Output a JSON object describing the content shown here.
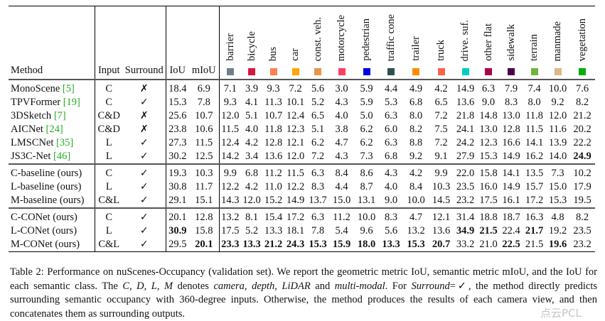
{
  "table": {
    "headers": {
      "method": "Method",
      "input": "Input",
      "surround": "Surround",
      "iou": "IoU",
      "miou": "mIoU"
    },
    "classes": [
      {
        "name": "barrier",
        "color": "#708090"
      },
      {
        "name": "bicycle",
        "color": "#DC143C"
      },
      {
        "name": "bus",
        "color": "#FF7F50"
      },
      {
        "name": "car",
        "color": "#FFA500"
      },
      {
        "name": "const. veh.",
        "color": "#E9964A"
      },
      {
        "name": "motorcycle",
        "color": "#FF3D63"
      },
      {
        "name": "pedestrian",
        "color": "#0000E6"
      },
      {
        "name": "traffic cone",
        "color": "#2F4F4F"
      },
      {
        "name": "trailer",
        "color": "#FF8C00"
      },
      {
        "name": "truck",
        "color": "#FF6347"
      },
      {
        "name": "drive. suf.",
        "color": "#00CFBF"
      },
      {
        "name": "other flat",
        "color": "#AF004B"
      },
      {
        "name": "sidewalk",
        "color": "#4B004B"
      },
      {
        "name": "terrain",
        "color": "#70B43C"
      },
      {
        "name": "manmade",
        "color": "#DEB887"
      },
      {
        "name": "vegetation",
        "color": "#00AF00"
      }
    ],
    "groups": [
      [
        {
          "method": "MonoScene",
          "cite": "[5]",
          "input": "C",
          "surround": "✗",
          "values": [
            "18.4",
            "6.9",
            "7.1",
            "3.9",
            "9.3",
            "7.2",
            "5.6",
            "3.0",
            "5.9",
            "4.4",
            "4.9",
            "4.2",
            "14.9",
            "6.3",
            "7.9",
            "7.4",
            "10.0",
            "7.6"
          ],
          "bold": []
        },
        {
          "method": "TPVFormer",
          "cite": "[19]",
          "input": "C",
          "surround": "✓",
          "values": [
            "15.3",
            "7.8",
            "9.3",
            "4.1",
            "11.3",
            "10.1",
            "5.2",
            "4.3",
            "5.9",
            "5.3",
            "6.8",
            "6.5",
            "13.6",
            "9.0",
            "8.3",
            "8.0",
            "9.2",
            "8.2"
          ],
          "bold": []
        },
        {
          "method": "3DSketch",
          "cite": "[7]",
          "input": "C&D",
          "surround": "✗",
          "values": [
            "25.6",
            "10.7",
            "12.0",
            "5.1",
            "10.7",
            "12.4",
            "6.5",
            "4.0",
            "5.0",
            "6.3",
            "8.0",
            "7.2",
            "21.8",
            "14.8",
            "13.0",
            "11.8",
            "12.0",
            "21.2"
          ],
          "bold": []
        },
        {
          "method": "AICNet",
          "cite": "[24]",
          "input": "C&D",
          "surround": "✗",
          "values": [
            "23.8",
            "10.6",
            "11.5",
            "4.0",
            "11.8",
            "12.3",
            "5.1",
            "3.8",
            "6.2",
            "6.0",
            "8.2",
            "7.5",
            "24.1",
            "13.0",
            "12.8",
            "11.5",
            "11.6",
            "20.2"
          ],
          "bold": []
        },
        {
          "method": "LMSCNet",
          "cite": "[35]",
          "input": "L",
          "surround": "✓",
          "values": [
            "27.3",
            "11.5",
            "12.4",
            "4.2",
            "12.8",
            "12.1",
            "6.2",
            "4.7",
            "6.2",
            "6.3",
            "8.8",
            "7.2",
            "24.2",
            "12.3",
            "16.6",
            "14.1",
            "13.9",
            "22.2"
          ],
          "bold": []
        },
        {
          "method": "JS3C-Net",
          "cite": "[46]",
          "input": "L",
          "surround": "✓",
          "values": [
            "30.2",
            "12.5",
            "14.2",
            "3.4",
            "13.6",
            "12.0",
            "7.2",
            "4.3",
            "7.3",
            "6.8",
            "9.2",
            "9.1",
            "27.9",
            "15.3",
            "14.9",
            "16.2",
            "14.0",
            "24.9"
          ],
          "bold": [
            17
          ]
        }
      ],
      [
        {
          "method": "C-baseline (ours)",
          "cite": "",
          "input": "C",
          "surround": "✓",
          "values": [
            "19.3",
            "10.3",
            "9.9",
            "6.8",
            "11.2",
            "11.5",
            "6.3",
            "8.4",
            "8.6",
            "4.3",
            "4.2",
            "9.9",
            "22.0",
            "15.8",
            "14.1",
            "13.5",
            "7.3",
            "10.2"
          ],
          "bold": []
        },
        {
          "method": "L-baseline (ours)",
          "cite": "",
          "input": "L",
          "surround": "✓",
          "values": [
            "30.8",
            "11.7",
            "12.2",
            "4.2",
            "11.0",
            "12.2",
            "8.3",
            "4.4",
            "8.7",
            "4.0",
            "8.4",
            "10.3",
            "23.5",
            "16.0",
            "14.9",
            "15.7",
            "15.0",
            "17.9"
          ],
          "bold": []
        },
        {
          "method": "M-baseline (ours)",
          "cite": "",
          "input": "C&L",
          "surround": "✓",
          "values": [
            "29.1",
            "15.1",
            "14.3",
            "12.0",
            "15.2",
            "14.9",
            "13.7",
            "15.0",
            "13.1",
            "9.0",
            "10.0",
            "14.5",
            "23.2",
            "17.5",
            "16.1",
            "17.2",
            "15.3",
            "19.5"
          ],
          "bold": []
        }
      ],
      [
        {
          "method": "C-CONet (ours)",
          "cite": "",
          "input": "C",
          "surround": "✓",
          "values": [
            "20.1",
            "12.8",
            "13.2",
            "8.1",
            "15.4",
            "17.2",
            "6.3",
            "11.2",
            "10.0",
            "8.3",
            "4.7",
            "12.1",
            "31.4",
            "18.8",
            "18.7",
            "16.3",
            "4.8",
            "8.2"
          ],
          "bold": []
        },
        {
          "method": "L-CONet (ours)",
          "cite": "",
          "input": "L",
          "surround": "✓",
          "values": [
            "30.9",
            "15.8",
            "17.5",
            "5.2",
            "13.3",
            "18.1",
            "7.8",
            "5.4",
            "9.6",
            "5.6",
            "13.2",
            "13.6",
            "34.9",
            "21.5",
            "22.4",
            "21.7",
            "19.2",
            "23.5"
          ],
          "bold": [
            0,
            12,
            13,
            15
          ]
        },
        {
          "method": "M-CONet (ours)",
          "cite": "",
          "input": "C&L",
          "surround": "✓",
          "values": [
            "29.5",
            "20.1",
            "23.3",
            "13.3",
            "21.2",
            "24.3",
            "15.3",
            "15.9",
            "18.0",
            "13.3",
            "15.3",
            "20.7",
            "33.2",
            "21.0",
            "22.5",
            "21.5",
            "19.6",
            "23.2"
          ],
          "bold": [
            1,
            2,
            3,
            4,
            5,
            6,
            7,
            8,
            9,
            10,
            11,
            14,
            16
          ]
        }
      ]
    ]
  },
  "caption": [
    {
      "text": "Table 2: Performance on nuScenes-Occupancy (validation set). We report the geometric metric IoU, semantic metric mIoU, and the IoU for each semantic class. The ",
      "italic": false
    },
    {
      "text": "C, D, L, M",
      "italic": true
    },
    {
      "text": " denotes ",
      "italic": false
    },
    {
      "text": "camera, depth, LiDAR",
      "italic": true
    },
    {
      "text": " and ",
      "italic": false
    },
    {
      "text": "multi-modal",
      "italic": true
    },
    {
      "text": ". For ",
      "italic": false
    },
    {
      "text": "Surround",
      "italic": true
    },
    {
      "text": "=✓, the method directly predicts surrounding semantic occupancy with 360-degree inputs. Otherwise, the method produces the results of each camera view, and then concatenates them as surrounding outputs.",
      "italic": false
    }
  ],
  "watermark": "点云PCL"
}
